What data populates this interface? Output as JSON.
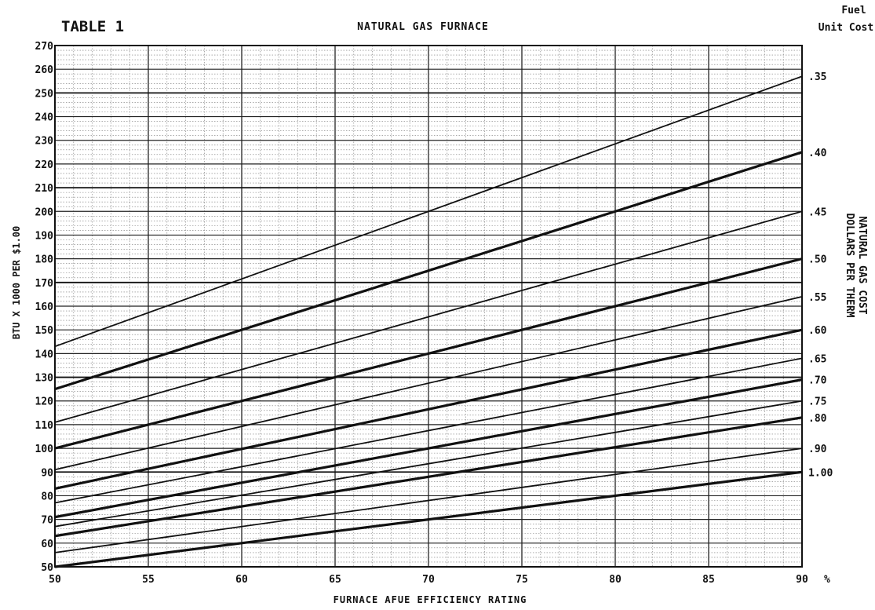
{
  "chart_data": {
    "type": "line",
    "table_label": "TABLE 1",
    "title": "NATURAL GAS FURNACE",
    "xlabel": "FURNACE AFUE EFFICIENCY RATING",
    "x_unit": "%",
    "ylabel": "BTU X 1000 PER $1.00",
    "right_header": [
      "Fuel",
      "Unit Cost"
    ],
    "right_label": [
      "NATURAL GAS COST",
      "DOLLARS PER THERM"
    ],
    "xlim": [
      50,
      90
    ],
    "ylim": [
      50,
      270
    ],
    "x_ticks": [
      50,
      55,
      60,
      65,
      70,
      75,
      80,
      85,
      90
    ],
    "y_ticks": [
      50,
      60,
      70,
      80,
      90,
      100,
      110,
      120,
      130,
      140,
      150,
      160,
      170,
      180,
      190,
      200,
      210,
      220,
      230,
      240,
      250,
      260,
      270
    ],
    "grid": true,
    "x": [
      50,
      90
    ],
    "series": [
      {
        "name": ".35",
        "values": [
          143,
          257
        ]
      },
      {
        "name": ".40",
        "values": [
          125,
          225
        ]
      },
      {
        "name": ".45",
        "values": [
          111,
          200
        ]
      },
      {
        "name": ".50",
        "values": [
          100,
          180
        ]
      },
      {
        "name": ".55",
        "values": [
          91,
          164
        ]
      },
      {
        "name": ".60",
        "values": [
          83,
          150
        ]
      },
      {
        "name": ".65",
        "values": [
          77,
          138
        ]
      },
      {
        "name": ".70",
        "values": [
          71,
          129
        ]
      },
      {
        "name": ".75",
        "values": [
          67,
          120
        ]
      },
      {
        "name": ".80",
        "values": [
          63,
          113
        ]
      },
      {
        "name": ".90",
        "values": [
          56,
          100
        ]
      },
      {
        "name": "1.00",
        "values": [
          50,
          90
        ]
      }
    ],
    "series_labels_right": [
      ".35",
      ".40",
      ".45",
      ".50",
      ".55",
      ".60",
      ".65",
      ".70",
      ".75",
      ".80",
      ".90",
      "1.00"
    ]
  }
}
